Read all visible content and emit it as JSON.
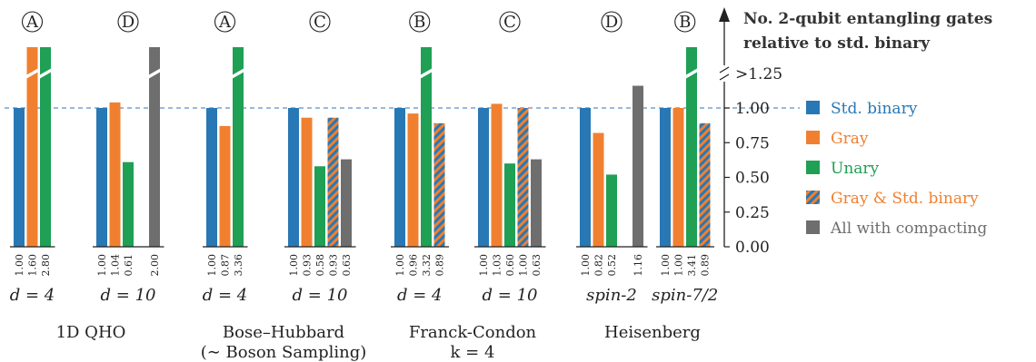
{
  "chart_data": {
    "type": "bar",
    "y_title_lines": [
      "No. 2-qubit entangling gates",
      "relative to std. binary"
    ],
    "yticks": [
      "0.00",
      "0.25",
      "0.50",
      "0.75",
      "1.00",
      ">1.25"
    ],
    "ylim": [
      0,
      1.25
    ],
    "reference_line": 1.0,
    "colors": {
      "std_binary": "#2878b5",
      "gray": "#f08030",
      "unary": "#1fa055",
      "compact": "#6e6e6e",
      "axis": "#222222",
      "refline": "#5b8fc9"
    },
    "legend": [
      {
        "key": "std_binary",
        "label": "Std. binary",
        "color": "#2878b5"
      },
      {
        "key": "gray",
        "label": "Gray",
        "color": "#f08030"
      },
      {
        "key": "unary",
        "label": "Unary",
        "color": "#1fa055"
      },
      {
        "key": "gray_std",
        "label": "Gray & Std. binary",
        "color": "#f08030",
        "hatch": true
      },
      {
        "key": "compact",
        "label": "All with compacting",
        "color": "#6e6e6e"
      }
    ],
    "subgroups": [
      {
        "marker": "A",
        "label": "d = 4",
        "bars": [
          {
            "s": "std_binary",
            "v": 1.0
          },
          {
            "s": "gray",
            "v": 1.6
          },
          {
            "s": "unary",
            "v": 2.8
          }
        ]
      },
      {
        "marker": "D",
        "label": "d = 10",
        "bars": [
          {
            "s": "std_binary",
            "v": 1.0
          },
          {
            "s": "gray",
            "v": 1.04
          },
          {
            "s": "unary",
            "v": 0.61
          },
          {
            "s": "compact",
            "v": 2.0
          }
        ]
      },
      {
        "marker": "A",
        "label": "d = 4",
        "bars": [
          {
            "s": "std_binary",
            "v": 1.0
          },
          {
            "s": "gray",
            "v": 0.87
          },
          {
            "s": "unary",
            "v": 3.36
          }
        ]
      },
      {
        "marker": "C",
        "label": "d = 10",
        "bars": [
          {
            "s": "std_binary",
            "v": 1.0
          },
          {
            "s": "gray",
            "v": 0.93
          },
          {
            "s": "unary",
            "v": 0.58
          },
          {
            "s": "gray_std",
            "v": 0.93
          },
          {
            "s": "compact",
            "v": 0.63
          }
        ]
      },
      {
        "marker": "B",
        "label": "d = 4",
        "bars": [
          {
            "s": "std_binary",
            "v": 1.0
          },
          {
            "s": "gray",
            "v": 0.96
          },
          {
            "s": "unary",
            "v": 3.32
          },
          {
            "s": "gray_std",
            "v": 0.89
          }
        ]
      },
      {
        "marker": "C",
        "label": "d = 10",
        "bars": [
          {
            "s": "std_binary",
            "v": 1.0
          },
          {
            "s": "gray",
            "v": 1.03
          },
          {
            "s": "unary",
            "v": 0.6
          },
          {
            "s": "gray_std",
            "v": 1.0
          },
          {
            "s": "compact",
            "v": 0.63
          }
        ]
      },
      {
        "marker": "D",
        "label": "spin-2",
        "bars": [
          {
            "s": "std_binary",
            "v": 1.0
          },
          {
            "s": "gray",
            "v": 0.82
          },
          {
            "s": "unary",
            "v": 0.52
          },
          {
            "s": "compact",
            "v": 1.16
          }
        ]
      },
      {
        "marker": "B",
        "label": "spin-7/2",
        "bars": [
          {
            "s": "std_binary",
            "v": 1.0
          },
          {
            "s": "gray",
            "v": 1.0
          },
          {
            "s": "unary",
            "v": 3.41
          },
          {
            "s": "gray_std",
            "v": 0.89
          }
        ]
      }
    ],
    "value_labels": [
      [
        "1.00",
        "1.60",
        "2.80"
      ],
      [
        "1.00",
        "1.04",
        "0.61",
        "",
        "2.00"
      ],
      [
        "1.00",
        "0.87",
        "3.36"
      ],
      [
        "1.00",
        "0.93",
        "0.58",
        "0.93",
        "0.63"
      ],
      [
        "1.00",
        "0.96",
        "3.32",
        "0.89"
      ],
      [
        "1.00",
        "1.03",
        "0.60",
        "1.00",
        "0.63"
      ],
      [
        "1.00",
        "0.82",
        "0.52",
        "",
        "1.16"
      ],
      [
        "1.00",
        "1.00",
        "3.41",
        "0.89"
      ]
    ],
    "groups": [
      {
        "lines": [
          "1D QHO"
        ]
      },
      {
        "lines": [
          "Bose–Hubbard",
          "(∼ Boson Sampling)"
        ]
      },
      {
        "lines": [
          "Franck-Condon",
          "k = 4"
        ]
      },
      {
        "lines": [
          "Heisenberg"
        ]
      }
    ]
  }
}
